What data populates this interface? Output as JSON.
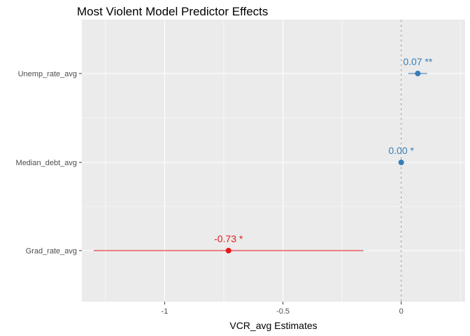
{
  "chart_data": {
    "type": "scatter",
    "subtype": "coefficient-plot",
    "title": "Most Violent Model Predictor Effects",
    "xlabel": "VCR_avg Estimates",
    "ylabel": "",
    "xlim": [
      -1.35,
      0.27
    ],
    "x_ticks": [
      -1,
      -0.5,
      0
    ],
    "x_tick_labels": [
      "-1",
      "-0.5",
      "0"
    ],
    "reference_line": {
      "x": 0,
      "style": "dashed",
      "color": "#a6a6a6"
    },
    "grid": true,
    "legend": "none",
    "colors": {
      "positive": "#377eb8",
      "negative": "#e41a1c",
      "panel": "#ebebeb",
      "grid": "#ffffff"
    },
    "categories": [
      "Unemp_rate_avg",
      "Median_debt_avg",
      "Grad_rate_avg"
    ],
    "points": [
      {
        "term": "Unemp_rate_avg",
        "estimate": 0.07,
        "ci_low": 0.03,
        "ci_high": 0.11,
        "label": "0.07 **",
        "sign": "positive"
      },
      {
        "term": "Median_debt_avg",
        "estimate": 0.0,
        "ci_low": 0.0,
        "ci_high": 0.0,
        "label": "0.00 *",
        "sign": "positive"
      },
      {
        "term": "Grad_rate_avg",
        "estimate": -0.73,
        "ci_low": -1.3,
        "ci_high": -0.16,
        "label": "-0.73 *",
        "sign": "negative"
      }
    ]
  }
}
